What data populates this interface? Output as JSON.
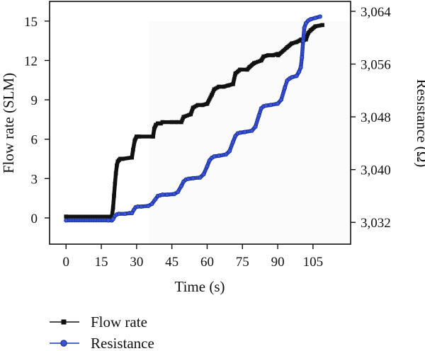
{
  "chart_data": {
    "type": "line",
    "xlabel": "Time (s)",
    "ylabel_left": "Flow rate (SLM)",
    "ylabel_right": "Resistance (Ω)",
    "x_ticks": [
      "0",
      "15",
      "30",
      "45",
      "60",
      "75",
      "90",
      "105"
    ],
    "y_left_ticks": [
      "0",
      "3",
      "6",
      "9",
      "12",
      "15"
    ],
    "y_right_ticks": [
      "3,032",
      "3,040",
      "3,048",
      "3,056",
      "3,064"
    ],
    "xlim": [
      -7,
      121
    ],
    "ylim_left": [
      -2,
      16.5
    ],
    "ylim_right": [
      3028.7,
      3065.5
    ],
    "grid": false,
    "legend_position": "below",
    "series": [
      {
        "name": "Flow rate",
        "axis": "left",
        "marker": "square",
        "color": "#111111",
        "x": [
          0,
          19.5,
          20,
          20.4,
          20.8,
          21.2,
          21.6,
          22,
          22.5,
          23,
          23.5,
          24,
          28,
          28.5,
          29.2,
          30,
          31,
          37,
          37.5,
          38.2,
          39,
          39.6,
          40.3,
          41,
          45,
          47,
          49,
          50,
          53,
          54,
          56,
          58,
          60,
          62,
          63,
          65,
          67,
          69,
          71,
          72,
          74,
          77,
          78,
          80,
          83,
          84,
          86,
          88,
          90,
          90.2,
          94,
          96,
          98,
          100,
          100.5,
          102,
          103,
          104,
          106,
          109
        ],
        "y": [
          0.1,
          0.1,
          0.8,
          1.7,
          2.6,
          3.4,
          4.0,
          4.3,
          4.4,
          4.5,
          4.5,
          4.5,
          4.6,
          5.2,
          5.9,
          6.2,
          6.2,
          6.2,
          6.8,
          7.1,
          7.2,
          7.2,
          7.2,
          7.3,
          7.3,
          7.3,
          7.3,
          7.7,
          7.9,
          8.4,
          8.6,
          8.6,
          8.7,
          9.4,
          9.8,
          10.0,
          10.0,
          10.1,
          10.2,
          11.0,
          11.3,
          11.3,
          11.5,
          11.8,
          12.0,
          12.3,
          12.4,
          12.4,
          12.5,
          12.4,
          13.0,
          13.3,
          13.4,
          13.6,
          13.5,
          13.6,
          14.1,
          14.3,
          14.6,
          14.7
        ]
      },
      {
        "name": "Resistance",
        "axis": "right",
        "marker": "circle",
        "color": "#1f35b8",
        "x": [
          0,
          18,
          19.5,
          20,
          20.8,
          21.6,
          22.5,
          25,
          27,
          28,
          28.8,
          29.6,
          30.5,
          32,
          35,
          36.5,
          38,
          39,
          40,
          41,
          43,
          46,
          47.5,
          49,
          50,
          51,
          52,
          54,
          57,
          58.5,
          60,
          61,
          62,
          63,
          65,
          68,
          69.5,
          71,
          72,
          73,
          74,
          76,
          79,
          80.5,
          82,
          83,
          84,
          85,
          87,
          90,
          91.5,
          93,
          94,
          95,
          96,
          98,
          99,
          99.8,
          100.3,
          100.8,
          101.3,
          102,
          103,
          104,
          106,
          108
        ],
        "y": [
          3032.3,
          3032.3,
          3032.3,
          3032.5,
          3033.0,
          3033.2,
          3033.3,
          3033.3,
          3033.4,
          3033.4,
          3033.9,
          3034.3,
          3034.4,
          3034.4,
          3034.5,
          3034.8,
          3035.5,
          3036.0,
          3036.1,
          3036.2,
          3036.2,
          3036.3,
          3036.6,
          3037.5,
          3038.2,
          3038.5,
          3038.6,
          3038.7,
          3038.8,
          3039.3,
          3040.5,
          3041.4,
          3041.8,
          3042.0,
          3042.1,
          3042.3,
          3042.8,
          3044.2,
          3045.1,
          3045.5,
          3045.6,
          3045.7,
          3045.9,
          3046.5,
          3048.2,
          3049.3,
          3049.6,
          3049.7,
          3049.8,
          3050.0,
          3050.6,
          3052.4,
          3053.5,
          3053.8,
          3054.0,
          3054.2,
          3054.8,
          3055.5,
          3057.0,
          3059.5,
          3061.5,
          3062.2,
          3062.6,
          3062.8,
          3063.0,
          3063.2
        ]
      }
    ]
  }
}
